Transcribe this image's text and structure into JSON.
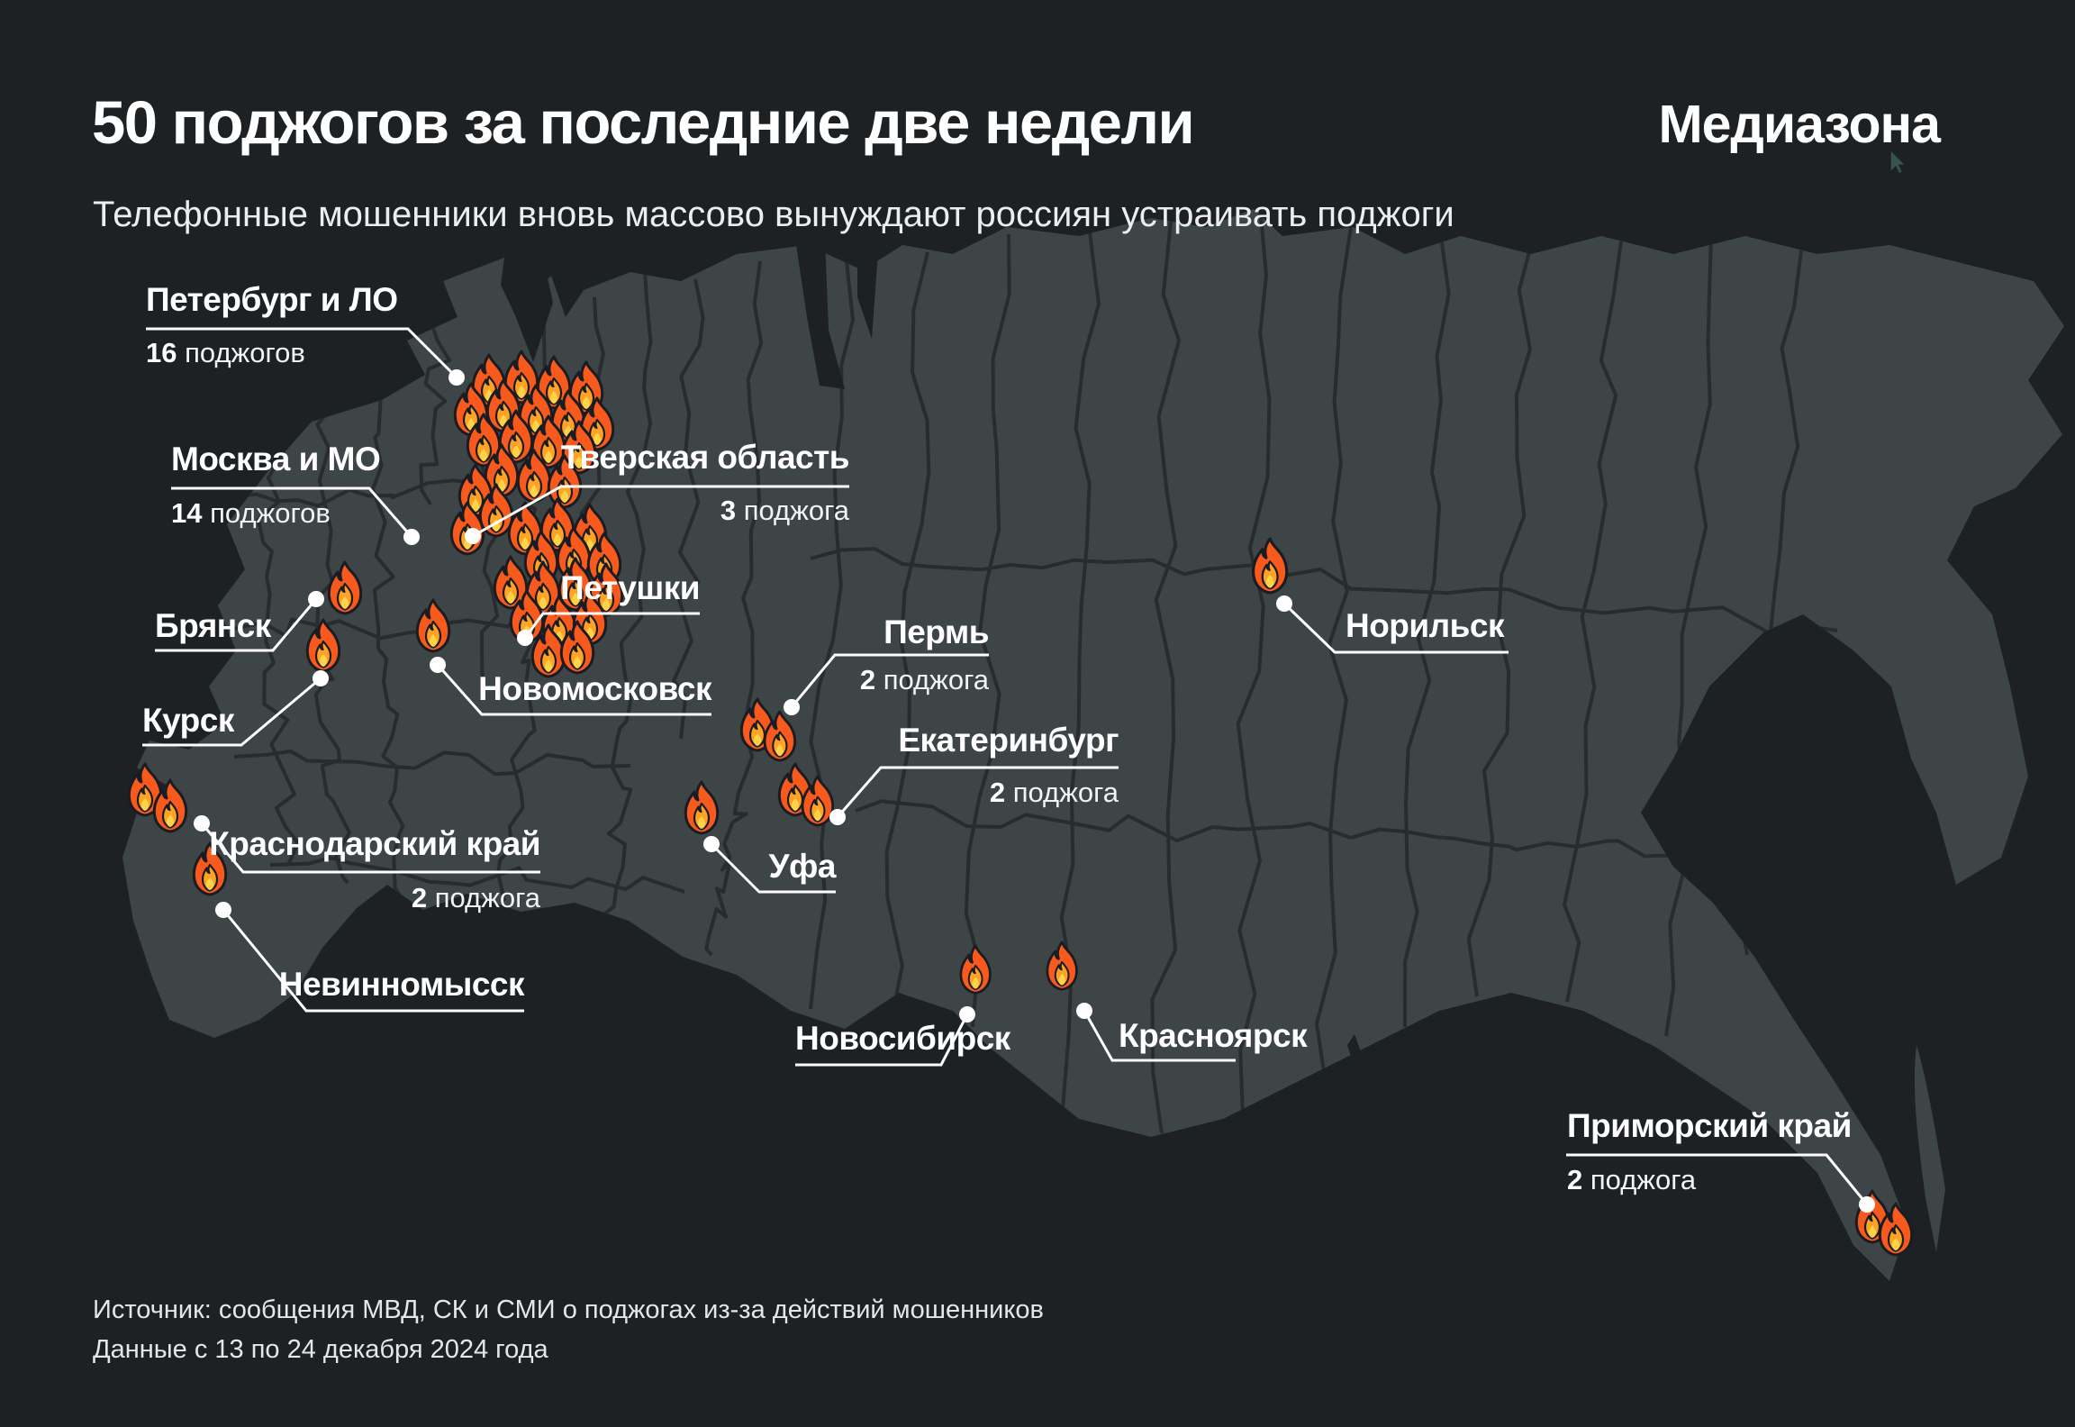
{
  "header": {
    "title": "50 поджогов за последние две недели",
    "brand": "Медиазона",
    "subtitle": "Телефонные мошенники вновь массово вынуждают россиян устраивать поджоги"
  },
  "footer": {
    "line1": "Источник: сообщения МВД, СК и СМИ о поджогах из-за действий мошенников",
    "line2": "Данные с 13 по 24 декабря 2024 года"
  },
  "regions": [
    {
      "id": "pet",
      "name": "Петербург и ЛО",
      "count": "16",
      "unit": "поджогов"
    },
    {
      "id": "mos",
      "name": "Москва и МО",
      "count": "14",
      "unit": "поджогов"
    },
    {
      "id": "tver",
      "name": "Тверская область",
      "count": "3",
      "unit": "поджога"
    },
    {
      "id": "petushki",
      "name": "Петушки",
      "count": null,
      "unit": null
    },
    {
      "id": "bryansk",
      "name": "Брянск",
      "count": null,
      "unit": null
    },
    {
      "id": "kursk",
      "name": "Курск",
      "count": null,
      "unit": null
    },
    {
      "id": "novomoskovsk",
      "name": "Новомосковск",
      "count": null,
      "unit": null
    },
    {
      "id": "perm",
      "name": "Пермь",
      "count": "2",
      "unit": "поджога"
    },
    {
      "id": "ekb",
      "name": "Екатеринбург",
      "count": "2",
      "unit": "поджога"
    },
    {
      "id": "ufa",
      "name": "Уфа",
      "count": null,
      "unit": null
    },
    {
      "id": "krasnodar",
      "name": "Краснодарский край",
      "count": "2",
      "unit": "поджога"
    },
    {
      "id": "nevinnomyssk",
      "name": "Невинномысск",
      "count": null,
      "unit": null
    },
    {
      "id": "novosibirsk",
      "name": "Новосибирск",
      "count": null,
      "unit": null
    },
    {
      "id": "norilsk",
      "name": "Норильск",
      "count": null,
      "unit": null
    },
    {
      "id": "krasnoyarsk",
      "name": "Красноярск",
      "count": null,
      "unit": null
    },
    {
      "id": "primorsky",
      "name": "Приморский край",
      "count": "2",
      "unit": "поджога"
    }
  ],
  "colors": {
    "background": "#1d2124",
    "land": "#3e4546",
    "region_border": "#282c2f",
    "label_text": "#ffffff",
    "leader_line": "#ffffff",
    "flame_outline": "#191d23",
    "flame_body": "#f8591c",
    "flame_mid": "#ffa226",
    "flame_core": "#ffd348"
  },
  "icons": {
    "marker": "fire-icon",
    "pointer": "mouse-cursor-icon"
  }
}
